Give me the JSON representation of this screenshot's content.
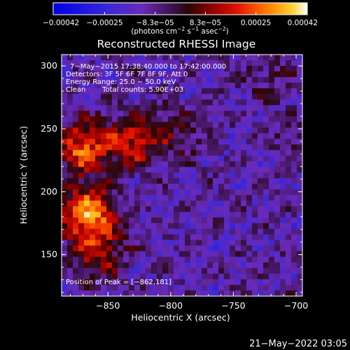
{
  "chart_data": {
    "type": "heatmap",
    "title": "Reconstructed RHESSI Image",
    "xlabel": "Heliocentric X (arcsec)",
    "ylabel": "Heliocentric Y (arcsec)",
    "xlim": [
      -887,
      -695
    ],
    "ylim": [
      117,
      309
    ],
    "x_ticks": [
      -850,
      -800,
      -750,
      -700
    ],
    "x_tick_labels": [
      "−850",
      "−800",
      "−750",
      "−700"
    ],
    "y_ticks": [
      150,
      200,
      250,
      300
    ],
    "y_tick_labels": [
      "150",
      "200",
      "250",
      "300"
    ],
    "colorbar": {
      "range": [
        -0.00042,
        0.00042
      ],
      "ticks": [
        -0.00042,
        -0.00025,
        -8.3e-05,
        8.3e-05,
        0.00025,
        0.00042
      ],
      "tick_labels": [
        "−0.00042",
        "−0.00025",
        "−8.3e−05",
        "8.3e−05",
        "0.00025",
        "0.00042"
      ],
      "units": {
        "prefix": "(photons cm",
        "sup1": "−2",
        "mid": " s",
        "sup2": "−1",
        "mid2": " asec",
        "sup3": "−2",
        "suffix": ")"
      }
    },
    "annotations": {
      "time_range": "7−May−2015 17:38:40.000 to 17:42:00.000",
      "detectors": "Detectors: 3F 5F 6F 7F 8F 9F, Att 0",
      "energy": "Energy Range: 25.0 − 50.0 keV",
      "clean": "Clean",
      "total_counts": "Total counts: 5.90E+03",
      "peak": "Position of Peak = [−862,181]"
    },
    "peak_position": [
      -862,
      181
    ],
    "sources": [
      {
        "x": -866,
        "y": 182,
        "value": 0.00042
      },
      {
        "x": -870,
        "y": 235,
        "value": 0.00036
      },
      {
        "x": -830,
        "y": 240,
        "value": 0.00026
      },
      {
        "x": -858,
        "y": 152,
        "value": 0.00022
      },
      {
        "x": -797,
        "y": 245,
        "value": 0.00012
      },
      {
        "x": -722,
        "y": 290,
        "value": 8e-05
      },
      {
        "x": -700,
        "y": 240,
        "value": 7e-05
      }
    ]
  },
  "footer": {
    "timestamp": "21−May−2022 03:05"
  }
}
